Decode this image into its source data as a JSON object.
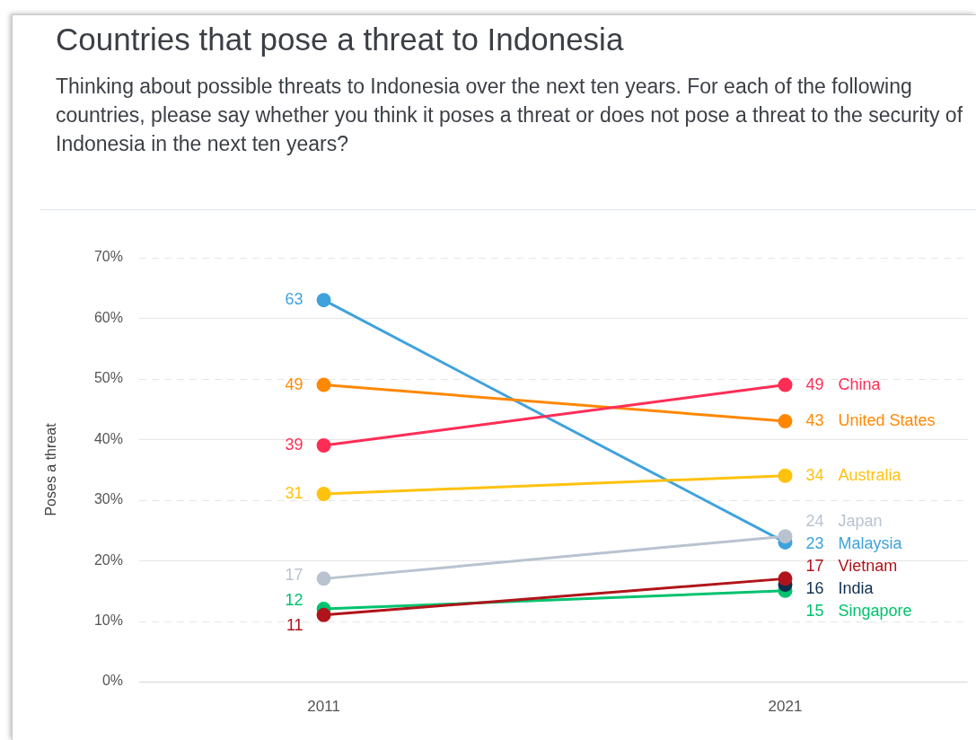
{
  "chart_data": {
    "type": "line",
    "title": "Countries that pose a threat to Indonesia",
    "subtitle": "Thinking about possible threats to Indonesia over the next ten years. For each of the following countries, please say whether you think it poses a threat or does not pose a threat to the security of Indonesia in the next ten years?",
    "ylabel": "Poses a threat",
    "categories": [
      "2011",
      "2021"
    ],
    "series": [
      {
        "name": "China",
        "color": "#ff2d55",
        "values": [
          39,
          49
        ]
      },
      {
        "name": "United States",
        "color": "#ff8800",
        "values": [
          49,
          43
        ]
      },
      {
        "name": "Australia",
        "color": "#ffc20e",
        "values": [
          31,
          34
        ]
      },
      {
        "name": "Japan",
        "color": "#b9c3d0",
        "values": [
          17,
          24
        ]
      },
      {
        "name": "Malaysia",
        "color": "#3fa2dc",
        "values": [
          63,
          23
        ]
      },
      {
        "name": "Vietnam",
        "color": "#b0141a",
        "values": [
          11,
          17
        ]
      },
      {
        "name": "India",
        "color": "#0e2f4f",
        "values": [
          null,
          16
        ]
      },
      {
        "name": "Singapore",
        "color": "#00c26e",
        "values": [
          12,
          15
        ]
      }
    ],
    "ylim": [
      0,
      70
    ],
    "yticks": [
      {
        "value": 0,
        "label": "0%"
      },
      {
        "value": 10,
        "label": "10%"
      },
      {
        "value": 20,
        "label": "20%"
      },
      {
        "value": 30,
        "label": "30%"
      },
      {
        "value": 40,
        "label": "40%"
      },
      {
        "value": 50,
        "label": "50%"
      },
      {
        "value": 60,
        "label": "60%"
      },
      {
        "value": 70,
        "label": "70%"
      }
    ],
    "grid": "y",
    "marker": "circle",
    "data_labels": true
  }
}
